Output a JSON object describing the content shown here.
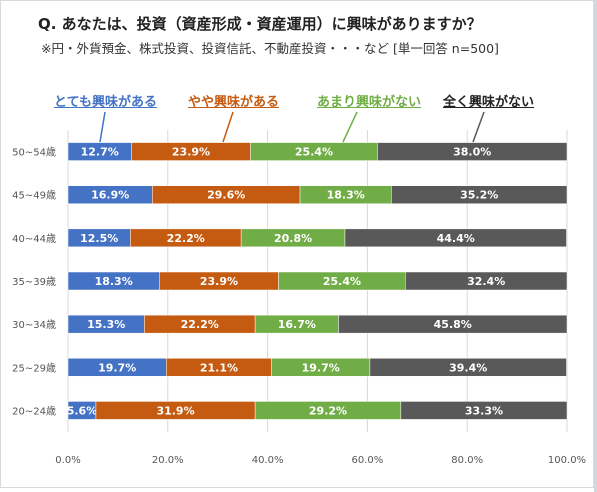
{
  "title": "Q. あなたは、投資（資産形成・資産運用）に興味がありますか？",
  "subtitle": "※円・外貨預金、株式投資、投資信託、不動産投資・・・など [単一回答 n=500]",
  "colors": [
    "#4472c4",
    "#c55a11",
    "#70ad47",
    "#595959"
  ],
  "chart_data": {
    "type": "bar",
    "orientation": "horizontal",
    "stacked": true,
    "percent": true,
    "title": "Q. あなたは、投資（資産形成・資産運用）に興味がありますか？",
    "subtitle": "※円・外貨預金、株式投資、投資信託、不動産投資・・・など [単一回答 n=500]",
    "categories": [
      "50~54歳",
      "45~49歳",
      "40~44歳",
      "35~39歳",
      "30~34歳",
      "25~29歳",
      "20~24歳"
    ],
    "xlim": [
      0,
      100
    ],
    "xticks": [
      "0.0%",
      "20.0%",
      "40.0%",
      "60.0%",
      "80.0%",
      "100.0%"
    ],
    "grid": true,
    "legend_position": "top",
    "series": [
      {
        "name": "とても興味がある",
        "values": [
          12.7,
          16.9,
          12.5,
          18.3,
          15.3,
          19.7,
          5.6
        ]
      },
      {
        "name": "やや興味がある",
        "values": [
          23.9,
          29.6,
          22.2,
          23.9,
          22.2,
          21.1,
          31.9
        ]
      },
      {
        "name": "あまり興味がない",
        "values": [
          25.4,
          18.3,
          20.8,
          25.4,
          16.7,
          19.7,
          29.2
        ]
      },
      {
        "name": "全く興味がない",
        "values": [
          38.0,
          35.2,
          44.4,
          32.4,
          45.8,
          39.4,
          33.3
        ]
      }
    ]
  }
}
